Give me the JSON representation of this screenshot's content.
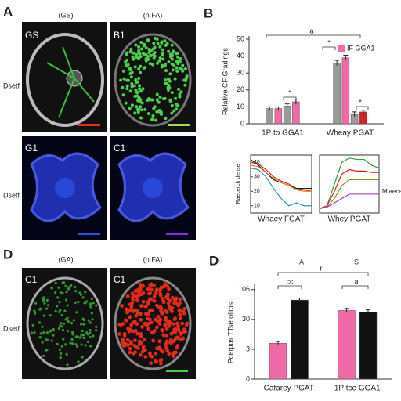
{
  "figure": {
    "panel_a": {
      "letter": "A",
      "columns": [
        "(GS)",
        "(n FA)"
      ],
      "row_labels": [
        "Dsetf",
        "Dsetf"
      ],
      "images": [
        "GS",
        "B1",
        "G1",
        "C1"
      ]
    },
    "panel_d": {
      "letter": "D",
      "columns": [
        "(GA)",
        "(n FA)"
      ],
      "row_label": "Dsetf",
      "images": [
        "C1",
        "C1"
      ]
    }
  },
  "chart_data": [
    {
      "type": "bar",
      "label": "B",
      "ylabel": "Relative CF Gradings",
      "categories": [
        "1P to GGA1",
        "Wheay PGAT"
      ],
      "series": [
        {
          "color": "#9a9a9a",
          "values": [
            9,
            36
          ],
          "errors": [
            1,
            1.5
          ]
        },
        {
          "name": "IF GGA1",
          "color": "#f06aa8",
          "values": [
            9,
            39
          ],
          "errors": [
            1,
            1.5
          ]
        },
        {
          "color": "#9a9a9a",
          "values": [
            10.5,
            5.5
          ],
          "errors": [
            1.2,
            1.5
          ]
        },
        {
          "color": "#f06aa8",
          "colors": [
            "#f06aa8",
            "#d4202a"
          ],
          "values": [
            13,
            7
          ],
          "errors": [
            1.5,
            1
          ]
        }
      ],
      "annotations": [
        "a",
        "*",
        "*",
        "*"
      ],
      "ylim": [
        0,
        50
      ],
      "yticks": [
        0,
        10,
        20,
        30,
        40,
        50
      ]
    },
    {
      "type": "line",
      "ylabel": "Raecerch dense",
      "xlabel": "Whaey FGAT",
      "x": [
        0,
        1,
        2,
        3,
        4,
        5,
        6,
        7,
        8
      ],
      "xlim": [
        0,
        8
      ],
      "ylim": [
        5,
        45
      ],
      "yticks": [
        10,
        20,
        30,
        40
      ],
      "series": [
        {
          "color": "#d4202a",
          "values": [
            40,
            39,
            35,
            30,
            27,
            25,
            22,
            21,
            20
          ]
        },
        {
          "color": "#222222",
          "values": [
            42,
            38,
            33,
            28,
            26,
            24,
            22,
            22,
            22
          ]
        },
        {
          "color": "#f08020",
          "values": [
            38,
            37,
            33,
            29,
            26,
            24,
            21,
            20,
            20
          ]
        },
        {
          "color": "#2a8fc0",
          "values": [
            36,
            35,
            30,
            22,
            15,
            10,
            12,
            10,
            10
          ]
        }
      ]
    },
    {
      "type": "line",
      "xlabel": "Whey PGAT",
      "annotation": "Mlaeca procea",
      "x": [
        0,
        1,
        2,
        3,
        4,
        5,
        6,
        7,
        8
      ],
      "xlim": [
        0,
        8
      ],
      "ylim": [
        5,
        45
      ],
      "series": [
        {
          "color": "#2e9e3e",
          "values": [
            8,
            10,
            25,
            40,
            43,
            42,
            42,
            38,
            36
          ]
        },
        {
          "color": "#d4202a",
          "values": [
            8,
            10,
            20,
            32,
            35,
            34,
            34,
            33,
            33
          ]
        },
        {
          "color": "#8a8a20",
          "values": [
            8,
            9,
            15,
            24,
            28,
            28,
            28,
            28,
            28
          ]
        },
        {
          "color": "#a040c0",
          "values": [
            8,
            9,
            12,
            15,
            18,
            18,
            18,
            18,
            18
          ]
        }
      ]
    },
    {
      "type": "bar",
      "label": "D",
      "ylabel": "Pcerpos TTse olitos",
      "categories": [
        "Cafarey PGAT",
        "1P tce GGA1"
      ],
      "series": [
        {
          "color": "#f06aa8",
          "values": [
            1.2,
            2.3
          ],
          "errors": [
            0.06,
            0.07
          ]
        },
        {
          "color": "#111111",
          "values": [
            2.65,
            2.25
          ],
          "errors": [
            0.07,
            0.08
          ]
        }
      ],
      "annotations": [
        "A",
        "S",
        "r",
        "cc",
        "a"
      ],
      "ylim": [
        0,
        3.1
      ],
      "yticks": [
        {
          "value": 0,
          "label": "0"
        },
        {
          "value": 1,
          "label": "3"
        },
        {
          "value": 2,
          "label": "30"
        },
        {
          "value": 3,
          "label": "106"
        }
      ]
    }
  ]
}
